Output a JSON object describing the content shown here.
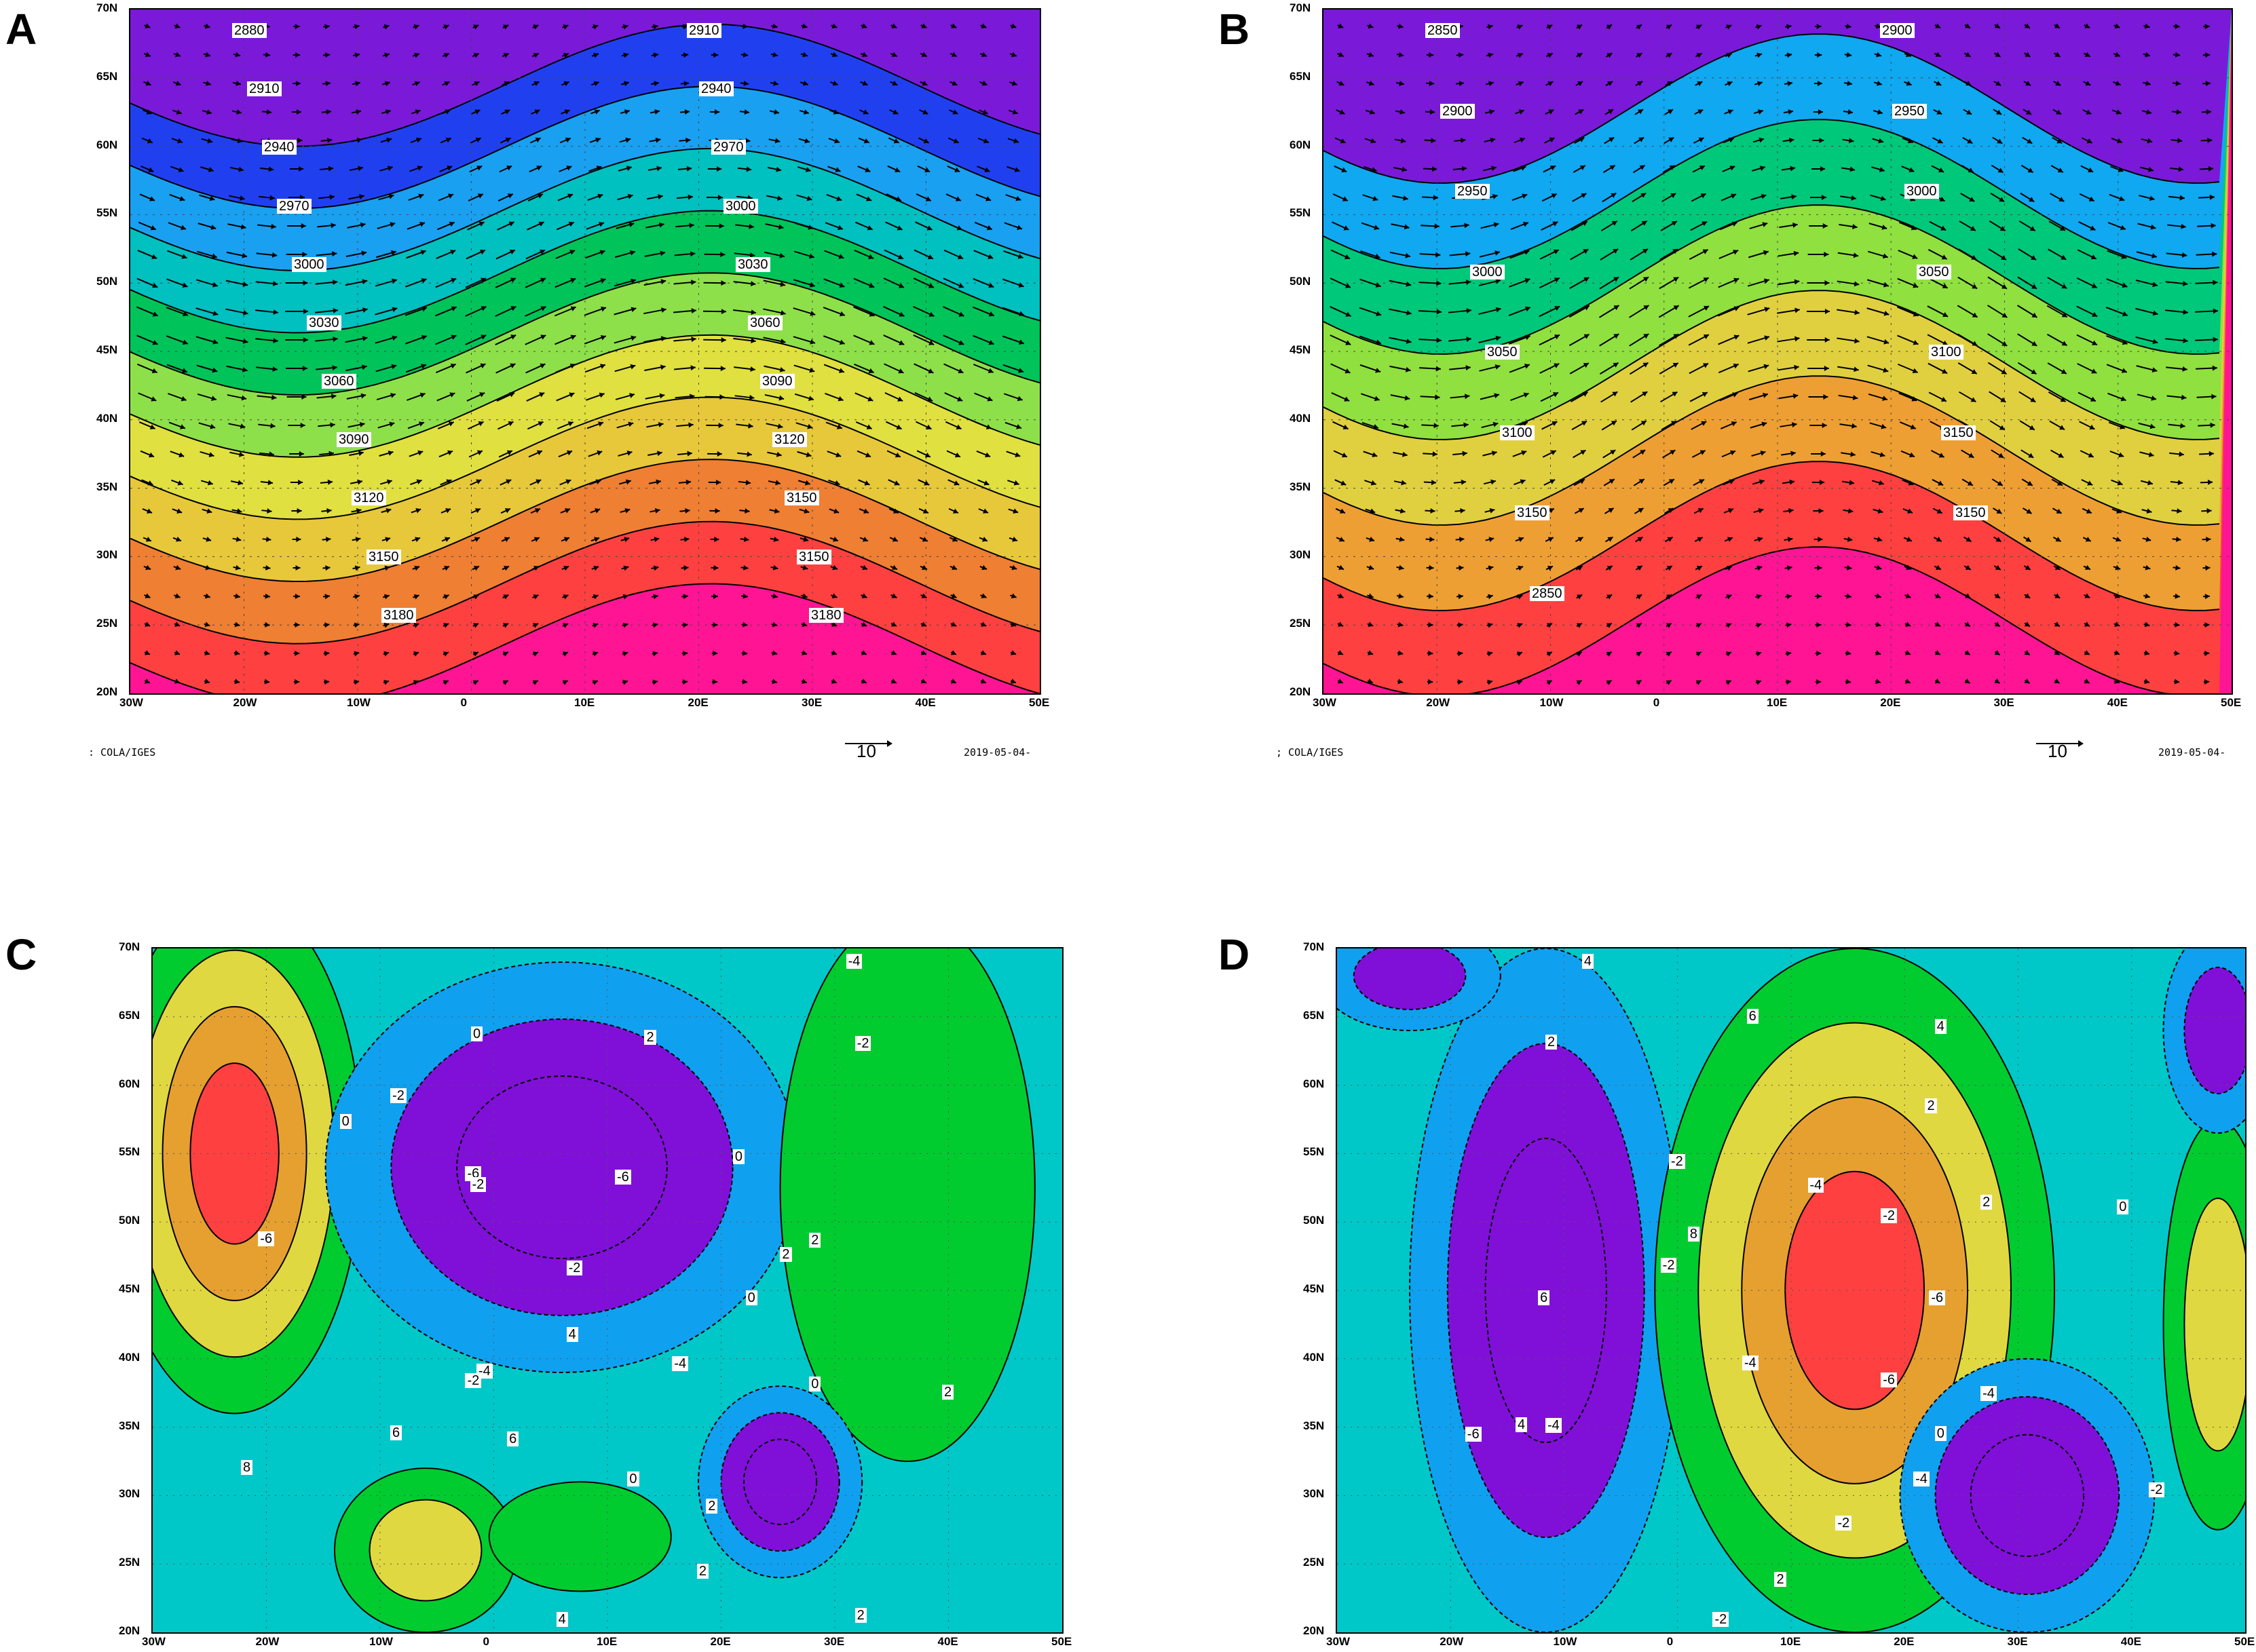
{
  "panels": [
    {
      "letter": "A",
      "lat_ticks": [
        "70N",
        "65N",
        "60N",
        "55N",
        "50N",
        "45N",
        "40N",
        "35N",
        "30N",
        "25N",
        "20N"
      ],
      "lon_ticks": [
        "30W",
        "20W",
        "10W",
        "0",
        "10E",
        "20E",
        "30E",
        "40E",
        "50E"
      ],
      "contour_labels": [
        "2880",
        "2910",
        "2940",
        "2970",
        "3000",
        "3030",
        "3060",
        "3090",
        "3120",
        "3150",
        "3180",
        "2910",
        "2940",
        "2970",
        "3000",
        "3030",
        "3060",
        "3090",
        "3120",
        "3150",
        "3150",
        "3180"
      ],
      "colors": [
        "#ff1493",
        "#ff4040",
        "#ee7f33",
        "#e6c83a",
        "#e0e040",
        "#8ee04a",
        "#00c45a",
        "#00c0c0",
        "#1aa0f0",
        "#2040f0",
        "#7a1ad8"
      ],
      "credit": ": COLA/IGES",
      "ref_vector_label": "10",
      "date": "2019-05-04-"
    },
    {
      "letter": "B",
      "lat_ticks": [
        "70N",
        "65N",
        "60N",
        "55N",
        "50N",
        "45N",
        "40N",
        "35N",
        "30N",
        "25N",
        "20N"
      ],
      "lon_ticks": [
        "30W",
        "20W",
        "10W",
        "0",
        "10E",
        "20E",
        "30E",
        "40E",
        "50E"
      ],
      "contour_labels": [
        "2850",
        "2900",
        "2950",
        "3000",
        "3050",
        "3100",
        "3150",
        "2850",
        "2900",
        "2950",
        "3000",
        "3050",
        "3100",
        "3150",
        "3150"
      ],
      "colors": [
        "#ff1493",
        "#ff4040",
        "#ee9f33",
        "#e0d040",
        "#90e040",
        "#00c87a",
        "#10a8f0",
        "#7a1ad8"
      ],
      "credit": "; COLA/IGES",
      "ref_vector_label": "10",
      "date": "2019-05-04-"
    },
    {
      "letter": "C",
      "lat_ticks": [
        "70N",
        "65N",
        "60N",
        "55N",
        "50N",
        "45N",
        "40N",
        "35N",
        "30N",
        "25N",
        "20N"
      ],
      "lon_ticks": [
        "30W",
        "20W",
        "10W",
        "0",
        "10E",
        "20E",
        "30E",
        "40E",
        "50E"
      ],
      "contour_labels": [
        "0",
        "0",
        "2",
        "4",
        "6",
        "8",
        "6",
        "4",
        "2",
        "0",
        "-2",
        "-4",
        "-6",
        "-6",
        "-6",
        "-4",
        "-2",
        "0",
        "2",
        "2",
        "2",
        "-4",
        "-2",
        "0",
        "-2",
        "-2",
        "0",
        "2",
        "2"
      ],
      "colors": [
        "#ff4040",
        "#e6a030",
        "#e0d840",
        "#00cc30",
        "#00c8c8",
        "#10a0f0",
        "#8010d8"
      ]
    },
    {
      "letter": "D",
      "lat_ticks": [
        "70N",
        "65N",
        "60N",
        "55N",
        "50N",
        "45N",
        "40N",
        "35N",
        "30N",
        "25N",
        "20N"
      ],
      "lon_ticks": [
        "30W",
        "20W",
        "10W",
        "0",
        "10E",
        "20E",
        "30E",
        "40E",
        "50E"
      ],
      "contour_labels": [
        "-6",
        "-4",
        "-2",
        "-2",
        "-4",
        "-6",
        "-4",
        "-2",
        "0",
        "2",
        "4",
        "6",
        "8",
        "6",
        "4",
        "2",
        "0",
        "-2",
        "-4",
        "-6",
        "-2",
        "-2",
        "2",
        "4",
        "-4",
        "2"
      ],
      "colors": [
        "#ff4040",
        "#e6a030",
        "#e0d840",
        "#00cc30",
        "#00c8c8",
        "#10a0f0",
        "#8010d8"
      ]
    }
  ]
}
